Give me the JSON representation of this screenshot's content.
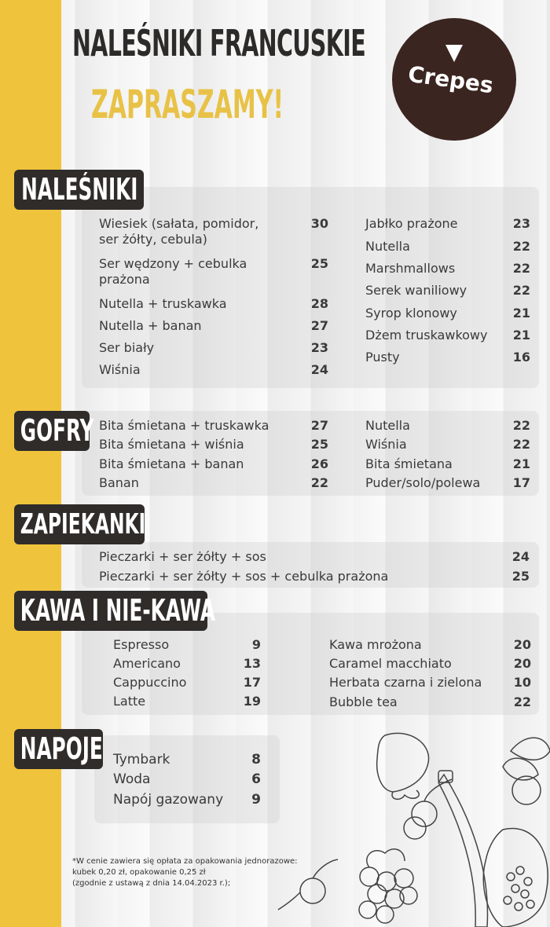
{
  "header": {
    "title": "NALEŚNIKI FRANCUSKIE",
    "subtitle": "ZAPRASZAMY!",
    "logo_text": "Crepes"
  },
  "sections": {
    "nalesniki": {
      "label": "NALEŚNIKI",
      "left": [
        {
          "name": "Wiesiek (sałata, pomidor,",
          "name2": "ser żółty, cebula)",
          "price": "30"
        },
        {
          "name": "Ser wędzony + cebulka",
          "name2": "prażona",
          "price": "25"
        },
        {
          "name": "Nutella + truskawka",
          "price": "28"
        },
        {
          "name": "Nutella + banan",
          "price": "27"
        },
        {
          "name": "Ser biały",
          "price": "23"
        },
        {
          "name": "Wiśnia",
          "price": "24"
        }
      ],
      "right": [
        {
          "name": "Jabłko prażone",
          "price": "23"
        },
        {
          "name": "Nutella",
          "price": "22"
        },
        {
          "name": "Marshmallows",
          "price": "22"
        },
        {
          "name": "Serek waniliowy",
          "price": "22"
        },
        {
          "name": "Syrop klonowy",
          "price": "21"
        },
        {
          "name": "Dżem truskawkowy",
          "price": "21"
        },
        {
          "name": "Pusty",
          "price": "16"
        }
      ]
    },
    "gofry": {
      "label": "GOFRY",
      "left": [
        {
          "name": "Bita śmietana + truskawka",
          "price": "27"
        },
        {
          "name": "Bita śmietana + wiśnia",
          "price": "25"
        },
        {
          "name": "Bita śmietana + banan",
          "price": "26"
        },
        {
          "name": "Banan",
          "price": "22"
        }
      ],
      "right": [
        {
          "name": "Nutella",
          "price": "22"
        },
        {
          "name": "Wiśnia",
          "price": "22"
        },
        {
          "name": "Bita śmietana",
          "price": "21"
        },
        {
          "name": "Puder/solo/polewa",
          "price": "17"
        }
      ]
    },
    "zapiekanki": {
      "label": "ZAPIEKANKI",
      "items": [
        {
          "name": "Pieczarki + ser żółty + sos",
          "price": "24"
        },
        {
          "name": "Pieczarki + ser żółty + sos + cebulka prażona",
          "price": "25"
        }
      ]
    },
    "kawa": {
      "label": "KAWA I NIE-KAWA",
      "left": [
        {
          "name": "Espresso",
          "price": "9"
        },
        {
          "name": "Americano",
          "price": "13"
        },
        {
          "name": "Cappuccino",
          "price": "17"
        },
        {
          "name": "Latte",
          "price": "19"
        }
      ],
      "right": [
        {
          "name": "Kawa mrożona",
          "price": "20"
        },
        {
          "name": "Caramel macchiato",
          "price": "20"
        },
        {
          "name": "Herbata czarna i zielona",
          "price": "10"
        },
        {
          "name": "Bubble tea",
          "price": "22"
        }
      ]
    },
    "napoje": {
      "label": "NAPOJE",
      "items": [
        {
          "name": "Tymbark",
          "price": "8"
        },
        {
          "name": "Woda",
          "price": "6"
        },
        {
          "name": "Napój gazowany",
          "price": "9"
        }
      ]
    }
  },
  "footer": {
    "line1": "*W cenie zawiera się opłata za opakowania jednorazowe:",
    "line2": "kubek 0,20 zł, opakowanie 0,25 zł",
    "line3": "(zgodnie z ustawą z dnia 14.04.2023 r.);"
  },
  "colors": {
    "accent": "#f0c33c",
    "dark": "#2f2c2a",
    "logo": "#3b2520"
  },
  "icons": [
    "fruit-illustration"
  ]
}
